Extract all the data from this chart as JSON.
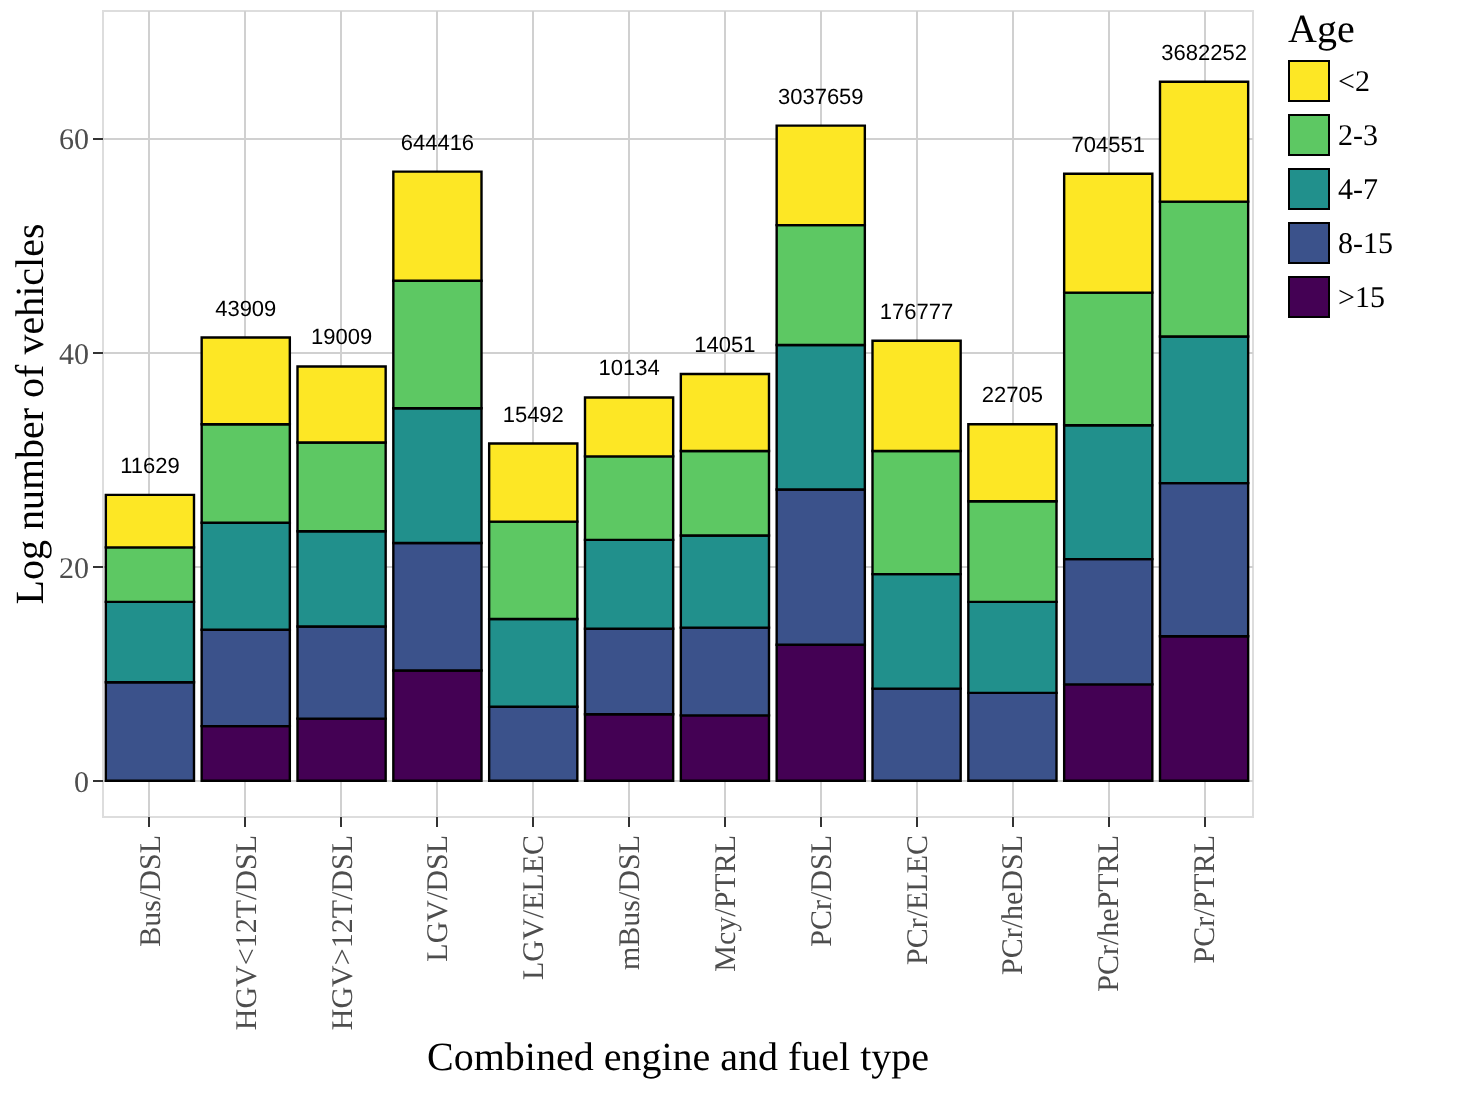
{
  "chart_data": {
    "type": "bar",
    "stacked": true,
    "xlabel": "Combined engine and fuel type",
    "ylabel": "Log number of vehicles",
    "legend_title": "Age",
    "legend": "right",
    "grid": true,
    "categories": [
      "Bus/DSL",
      "HGV<12T/DSL",
      "HGV>12T/DSL",
      "LGV/DSL",
      "LGV/ELEC",
      "mBus/DSL",
      "Mcy/PTRL",
      "PCr/DSL",
      "PCr/ELEC",
      "PCr/heDSL",
      "PCr/hePTRL",
      "PCr/PTRL"
    ],
    "series": [
      {
        "name": ">15",
        "color": "#440154",
        "values": [
          null,
          5.1,
          5.8,
          10.3,
          null,
          6.2,
          6.1,
          12.7,
          null,
          null,
          9.0,
          13.5
        ]
      },
      {
        "name": "8-15",
        "color": "#3b528b",
        "values": [
          9.2,
          9.0,
          8.6,
          11.9,
          6.9,
          8.0,
          8.2,
          14.5,
          8.6,
          8.2,
          11.7,
          14.3
        ]
      },
      {
        "name": "4-7",
        "color": "#21908c",
        "values": [
          7.5,
          10.0,
          8.9,
          12.6,
          8.2,
          8.3,
          8.6,
          13.5,
          10.7,
          8.5,
          12.5,
          13.7
        ]
      },
      {
        "name": "2-3",
        "color": "#5dc863",
        "values": [
          5.1,
          9.2,
          8.3,
          11.9,
          9.1,
          7.8,
          7.9,
          11.2,
          11.5,
          9.4,
          12.4,
          12.6
        ]
      },
      {
        "name": "<2",
        "color": "#fde725",
        "values": [
          4.9,
          8.1,
          7.1,
          10.2,
          7.3,
          5.5,
          7.2,
          9.3,
          10.3,
          7.2,
          11.1,
          11.2
        ]
      }
    ],
    "annotations": [
      {
        "text": "11629",
        "x": "Bus/DSL",
        "y": 26.7
      },
      {
        "text": "43909",
        "x": "HGV<12T/DSL",
        "y": 41.4
      },
      {
        "text": "19009",
        "x": "HGV>12T/DSL",
        "y": 38.7
      },
      {
        "text": "644416",
        "x": "LGV/DSL",
        "y": 56.9
      },
      {
        "text": "15492",
        "x": "LGV/ELEC",
        "y": 31.5
      },
      {
        "text": "10134",
        "x": "mBus/DSL",
        "y": 35.8
      },
      {
        "text": "14051",
        "x": "Mcy/PTRL",
        "y": 38.0
      },
      {
        "text": "3037659",
        "x": "PCr/DSL",
        "y": 61.2
      },
      {
        "text": "176777",
        "x": "PCr/ELEC",
        "y": 41.1
      },
      {
        "text": "22705",
        "x": "PCr/heDSL",
        "y": 33.3
      },
      {
        "text": "704551",
        "x": "PCr/hePTRL",
        "y": 56.7
      },
      {
        "text": "3682252",
        "x": "PCr/PTRL",
        "y": 65.3
      }
    ],
    "ylim": [
      -3.3,
      72
    ],
    "yticks": [
      0,
      20,
      40,
      60
    ]
  }
}
